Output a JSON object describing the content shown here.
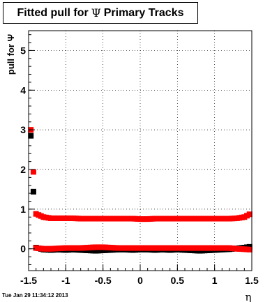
{
  "title": {
    "prefix": "Fitted pull for",
    "symbol": "Ψ",
    "suffix": "Primary Tracks"
  },
  "footer": "Tue Jan 29 11:34:12 2013",
  "chart_data": {
    "type": "scatter",
    "title": "Fitted pull for Ψ  Primary Tracks",
    "xlabel": "η",
    "ylabel": "pull for Ψ",
    "xlim": [
      -1.5,
      1.5
    ],
    "ylim": [
      -0.55,
      5.5
    ],
    "xticks": [
      -1.5,
      -1,
      -0.5,
      0,
      0.5,
      1,
      1.5
    ],
    "xtick_labels": [
      "-1.5",
      "-1",
      "-0.5",
      "0",
      "0.5",
      "1",
      "1.5"
    ],
    "yticks": [
      0,
      1,
      2,
      3,
      4,
      5
    ],
    "ytick_labels": [
      "0",
      "1",
      "2",
      "3",
      "4",
      "5"
    ],
    "grid": true,
    "series": [
      {
        "color": "#000000",
        "x": [
          -1.47,
          -1.4,
          -1.3,
          -1.2,
          -1.1,
          -1.0,
          -0.9,
          -0.8,
          -0.7,
          -0.6,
          -0.5,
          -0.4,
          -0.3,
          -0.2,
          -0.1,
          0.0,
          0.1,
          0.2,
          0.3,
          0.4,
          0.5,
          0.6,
          0.7,
          0.8,
          0.9,
          1.0,
          1.1,
          1.2,
          1.3,
          1.4,
          1.47
        ],
        "y": [
          2.85,
          0.03,
          -0.02,
          -0.03,
          -0.02,
          -0.03,
          -0.02,
          -0.03,
          -0.04,
          -0.05,
          -0.04,
          -0.03,
          -0.02,
          -0.02,
          -0.03,
          -0.02,
          -0.02,
          -0.03,
          -0.02,
          -0.03,
          -0.02,
          -0.03,
          -0.04,
          -0.05,
          -0.04,
          -0.03,
          -0.02,
          -0.01,
          0.01,
          0.03,
          0.05
        ]
      },
      {
        "color": "#ff0000",
        "x": [
          -1.47,
          -1.4,
          -1.3,
          -1.2,
          -1.1,
          -1.0,
          -0.9,
          -0.8,
          -0.7,
          -0.6,
          -0.5,
          -0.4,
          -0.3,
          -0.2,
          -0.1,
          0.0,
          0.1,
          0.2,
          0.3,
          0.4,
          0.5,
          0.6,
          0.7,
          0.8,
          0.9,
          1.0,
          1.1,
          1.2,
          1.3,
          1.4,
          1.47
        ],
        "y": [
          3.0,
          0.88,
          0.8,
          0.77,
          0.77,
          0.77,
          0.77,
          0.76,
          0.76,
          0.76,
          0.76,
          0.76,
          0.76,
          0.76,
          0.76,
          0.75,
          0.75,
          0.76,
          0.76,
          0.76,
          0.76,
          0.76,
          0.76,
          0.76,
          0.76,
          0.76,
          0.76,
          0.76,
          0.77,
          0.8,
          0.87
        ]
      },
      {
        "color": "#ff0000",
        "x": [
          -1.4,
          -1.3,
          -1.2,
          -1.1,
          -1.0,
          -0.9,
          -0.8,
          -0.7,
          -0.6,
          -0.5,
          -0.4,
          -0.3,
          -0.2,
          -0.1,
          0.0,
          0.1,
          0.2,
          0.3,
          0.4,
          0.5,
          0.6,
          0.7,
          0.8,
          0.9,
          1.0,
          1.1,
          1.2,
          1.3,
          1.4,
          1.47
        ],
        "y": [
          0.02,
          0.0,
          0.0,
          0.01,
          0.02,
          0.02,
          0.02,
          0.03,
          0.04,
          0.04,
          0.03,
          0.02,
          0.02,
          0.02,
          0.02,
          0.02,
          0.02,
          0.02,
          0.02,
          0.02,
          0.02,
          0.02,
          0.02,
          0.02,
          0.02,
          0.02,
          0.02,
          0.0,
          -0.01,
          -0.02
        ]
      }
    ]
  }
}
